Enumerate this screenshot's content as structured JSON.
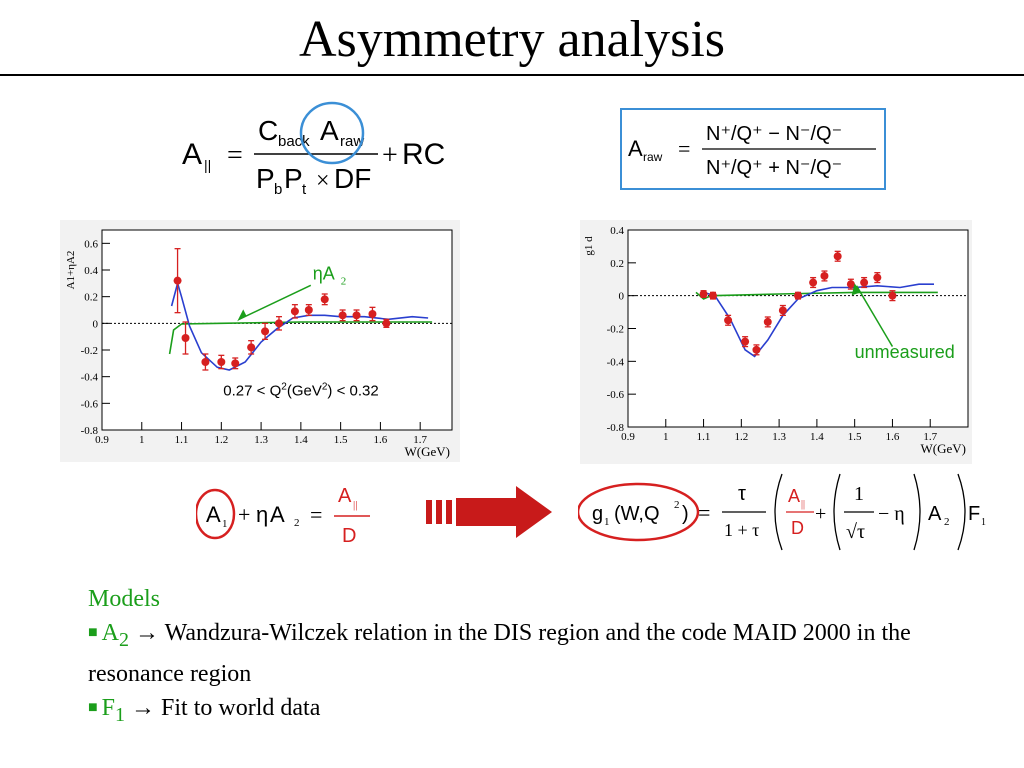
{
  "title": "Asymmetry analysis",
  "colors": {
    "accent_red": "#d62020",
    "accent_blue": "#3b8fd6",
    "accent_green": "#1b9e1b",
    "curve_blue": "#2a3fcf"
  },
  "formula_left": {
    "A": "A",
    "A_sub": "||",
    "eq": "=",
    "C": "C",
    "C_sub": "back",
    "Ar": "A",
    "Ar_sub": "raw",
    "P1": "P",
    "P1_sub": "b",
    "P2": "P",
    "P2_sub": "t",
    "times": "×",
    "DF": "DF",
    "plus": "+",
    "RC": "RC"
  },
  "formula_right": {
    "A": "A",
    "A_sub": "raw",
    "eq": "=",
    "num": "N⁺/Q⁺ − N⁻/Q⁻",
    "den": "N⁺/Q⁺ + N⁻/Q⁻"
  },
  "formula_bottom_left": {
    "A1": "A",
    "A1_sub": "1",
    "plus": "+",
    "eta": "η",
    "A2": "A",
    "A2_sub": "2",
    "eq": "=",
    "num": "A",
    "num_sub": "||",
    "den": "D"
  },
  "formula_bottom_right": {
    "g": "g",
    "g_sub": "1",
    "args": "(W,Q",
    "args_sup": "2",
    "args_close": ")",
    "eq": "=",
    "tau": "τ",
    "one_plus_tau": "1 + τ",
    "A_num": "A",
    "A_num_sub": "||",
    "A_den": "D",
    "plus": "+",
    "one": "1",
    "sqrt_tau": "√τ",
    "minus_eta": "− η",
    "A2": "A",
    "A2_sub": "2",
    "F": "F",
    "F_sub": "1"
  },
  "chart_data": [
    {
      "type": "scatter",
      "title": "",
      "ylabel": "A1+ηA2",
      "xlabel": "W(GeV)",
      "xlim": [
        0.9,
        1.78
      ],
      "ylim": [
        -0.8,
        0.7
      ],
      "xticks": [
        "0.9",
        "1",
        "1.1",
        "1.2",
        "1.3",
        "1.4",
        "1.5",
        "1.6",
        "1.7"
      ],
      "yticks": [
        "0.6",
        "0.4",
        "0.2",
        "0",
        "-0.2",
        "-0.4",
        "-0.6",
        "-0.8"
      ],
      "annotation_label": "ηA",
      "annotation_sub": "2",
      "kin_label": "0.27 < Q",
      "kin_sup1": "2",
      "kin_mid": "(GeV",
      "kin_sup2": "2",
      "kin_end": ") < 0.32",
      "grid": false,
      "series": [
        {
          "values": [
            [
              1.09,
              0.32,
              0.24
            ],
            [
              1.11,
              -0.11,
              0.12
            ],
            [
              1.16,
              -0.29,
              0.06
            ],
            [
              1.2,
              -0.29,
              0.05
            ],
            [
              1.235,
              -0.3,
              0.04
            ],
            [
              1.275,
              -0.18,
              0.05
            ],
            [
              1.31,
              -0.06,
              0.06
            ],
            [
              1.345,
              0.0,
              0.05
            ],
            [
              1.385,
              0.09,
              0.05
            ],
            [
              1.42,
              0.1,
              0.04
            ],
            [
              1.46,
              0.18,
              0.04
            ],
            [
              1.505,
              0.06,
              0.04
            ],
            [
              1.54,
              0.06,
              0.04
            ],
            [
              1.58,
              0.07,
              0.05
            ],
            [
              1.615,
              0.0,
              0.03
            ]
          ]
        }
      ],
      "model_curve": [
        [
          1.075,
          0.13
        ],
        [
          1.09,
          0.3
        ],
        [
          1.1,
          0.2
        ],
        [
          1.12,
          -0.02
        ],
        [
          1.15,
          -0.22
        ],
        [
          1.19,
          -0.33
        ],
        [
          1.22,
          -0.35
        ],
        [
          1.26,
          -0.29
        ],
        [
          1.3,
          -0.14
        ],
        [
          1.34,
          -0.04
        ],
        [
          1.38,
          0.04
        ],
        [
          1.42,
          0.06
        ],
        [
          1.46,
          0.06
        ],
        [
          1.5,
          0.05
        ],
        [
          1.56,
          0.05
        ],
        [
          1.62,
          0.03
        ],
        [
          1.68,
          0.05
        ],
        [
          1.72,
          0.04
        ]
      ],
      "a2_curve": [
        [
          1.07,
          -0.23
        ],
        [
          1.08,
          -0.05
        ],
        [
          1.1,
          -0.005
        ],
        [
          1.2,
          0.0
        ],
        [
          1.4,
          0.01
        ],
        [
          1.73,
          0.01
        ]
      ]
    },
    {
      "type": "scatter",
      "title": "",
      "ylabel": "g1 d",
      "xlabel": "W(GeV)",
      "xlim": [
        0.9,
        1.8
      ],
      "ylim": [
        -0.8,
        0.4
      ],
      "xticks": [
        "0.9",
        "1",
        "1.1",
        "1.2",
        "1.3",
        "1.4",
        "1.5",
        "1.6",
        "1.7"
      ],
      "yticks": [
        "0.4",
        "0.2",
        "0",
        "-0.2",
        "-0.4",
        "-0.6",
        "-0.8"
      ],
      "annotation_label": "unmeasured",
      "grid": false,
      "series": [
        {
          "values": [
            [
              1.1,
              0.01,
              0.02
            ],
            [
              1.125,
              0.0,
              0.02
            ],
            [
              1.165,
              -0.15,
              0.03
            ],
            [
              1.21,
              -0.28,
              0.03
            ],
            [
              1.24,
              -0.33,
              0.03
            ],
            [
              1.27,
              -0.16,
              0.03
            ],
            [
              1.31,
              -0.09,
              0.03
            ],
            [
              1.35,
              0.0,
              0.02
            ],
            [
              1.39,
              0.08,
              0.03
            ],
            [
              1.42,
              0.12,
              0.03
            ],
            [
              1.455,
              0.24,
              0.03
            ],
            [
              1.49,
              0.07,
              0.03
            ],
            [
              1.525,
              0.08,
              0.03
            ],
            [
              1.56,
              0.11,
              0.03
            ],
            [
              1.6,
              0.0,
              0.03
            ]
          ]
        }
      ],
      "model_curve": [
        [
          1.1,
          0.02
        ],
        [
          1.13,
          0.0
        ],
        [
          1.17,
          -0.14
        ],
        [
          1.21,
          -0.33
        ],
        [
          1.235,
          -0.37
        ],
        [
          1.27,
          -0.27
        ],
        [
          1.31,
          -0.12
        ],
        [
          1.35,
          -0.02
        ],
        [
          1.4,
          0.03
        ],
        [
          1.44,
          0.05
        ],
        [
          1.5,
          0.05
        ],
        [
          1.56,
          0.06
        ],
        [
          1.62,
          0.05
        ],
        [
          1.67,
          0.07
        ],
        [
          1.71,
          0.07
        ]
      ],
      "a2_curve": [
        [
          1.08,
          0.02
        ],
        [
          1.1,
          -0.02
        ],
        [
          1.12,
          0.0
        ],
        [
          1.3,
          0.01
        ],
        [
          1.5,
          0.02
        ],
        [
          1.72,
          0.02
        ]
      ]
    }
  ],
  "models": {
    "heading": "Models",
    "bullet": "■",
    "line1_symbol": "A",
    "line1_sub": "2",
    "arrow": "→",
    "line1_text": " Wandzura-Wilczek relation in the DIS region and the code MAID 2000 in the resonance region",
    "line2_symbol": "F",
    "line2_sub": "1",
    "line2_text": " Fit to world data"
  }
}
